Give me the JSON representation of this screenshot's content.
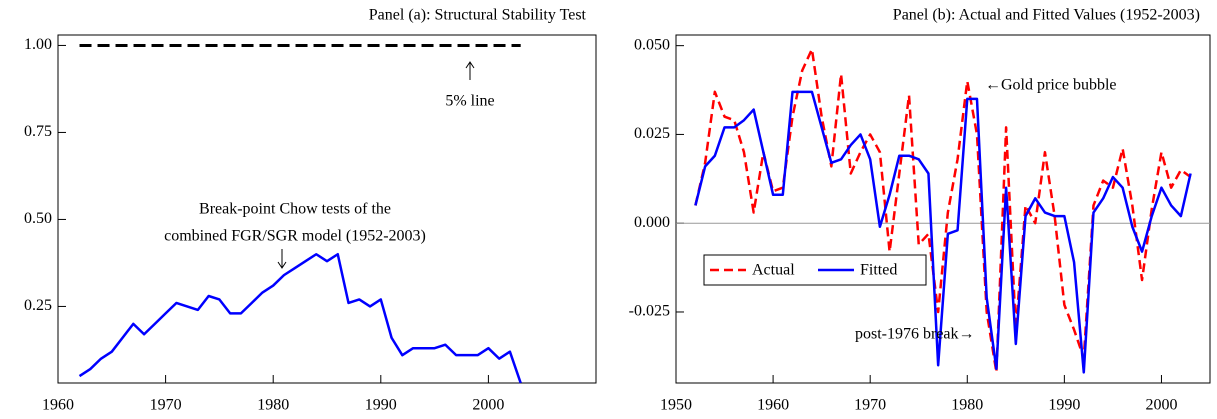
{
  "chart_data": [
    {
      "type": "line",
      "title": "Panel (a): Structural Stability Test",
      "x": [
        1962,
        1963,
        1964,
        1965,
        1966,
        1967,
        1968,
        1969,
        1970,
        1971,
        1972,
        1973,
        1974,
        1975,
        1976,
        1977,
        1978,
        1979,
        1980,
        1981,
        1982,
        1983,
        1984,
        1985,
        1986,
        1987,
        1988,
        1989,
        1990,
        1991,
        1992,
        1993,
        1994,
        1995,
        1996,
        1997,
        1998,
        1999,
        2000,
        2001,
        2002,
        2003
      ],
      "series": [
        {
          "color": "#0000ff",
          "values": [
            0.05,
            0.07,
            0.1,
            0.12,
            0.16,
            0.2,
            0.17,
            0.2,
            0.23,
            0.26,
            0.25,
            0.24,
            0.28,
            0.27,
            0.23,
            0.23,
            0.26,
            0.29,
            0.31,
            0.34,
            0.36,
            0.38,
            0.4,
            0.38,
            0.4,
            0.26,
            0.27,
            0.25,
            0.27,
            0.16,
            0.11,
            0.13,
            0.13,
            0.13,
            0.14,
            0.11,
            0.11,
            0.11,
            0.13,
            0.1,
            0.12,
            0.03
          ]
        }
      ],
      "hline": {
        "value": 1,
        "color": "#000000",
        "style": "dashed"
      },
      "xlim": [
        1960,
        2010
      ],
      "xticks": [
        1960,
        1970,
        1980,
        1990,
        2000
      ],
      "ylim": [
        0.03,
        1.03
      ],
      "yticks": [
        {
          "value": 1,
          "label": "1.00"
        },
        {
          "value": 0.75,
          "label": "0.75"
        },
        {
          "value": 0.5,
          "label": "0.50"
        },
        {
          "value": 0.25,
          "label": "0.25"
        }
      ],
      "annotations": [
        "5% line",
        "Break-point Chow tests of the",
        "combined FGR/SGR model (1952-2003)"
      ]
    },
    {
      "type": "line",
      "title": "Panel (b): Actual and Fitted Values (1952-2003)",
      "x": [
        1952,
        1953,
        1954,
        1955,
        1956,
        1957,
        1958,
        1959,
        1960,
        1961,
        1962,
        1963,
        1964,
        1965,
        1966,
        1967,
        1968,
        1969,
        1970,
        1971,
        1972,
        1973,
        1974,
        1975,
        1976,
        1977,
        1978,
        1979,
        1980,
        1981,
        1982,
        1983,
        1984,
        1985,
        1986,
        1987,
        1988,
        1989,
        1990,
        1991,
        1992,
        1993,
        1994,
        1995,
        1996,
        1997,
        1998,
        1999,
        2000,
        2001,
        2002,
        2003
      ],
      "series": [
        {
          "name": "Actual",
          "color": "#ff0000",
          "style": "dashed",
          "values": [
            0.005,
            0.017,
            0.037,
            0.03,
            0.029,
            0.02,
            0.003,
            0.02,
            0.009,
            0.01,
            0.03,
            0.043,
            0.049,
            0.03,
            0.016,
            0.042,
            0.014,
            0.02,
            0.025,
            0.02,
            -0.008,
            0.014,
            0.036,
            -0.006,
            -0.003,
            -0.025,
            0.003,
            0.018,
            0.04,
            0.025,
            -0.025,
            -0.042,
            0.027,
            -0.03,
            0.005,
            0.0,
            0.02,
            0.002,
            -0.023,
            -0.03,
            -0.038,
            0.005,
            0.012,
            0.01,
            0.021,
            0.005,
            -0.016,
            0.004,
            0.02,
            0.01,
            0.015,
            0.013
          ]
        },
        {
          "name": "Fitted",
          "color": "#0000ff",
          "style": "solid",
          "values": [
            0.005,
            0.016,
            0.019,
            0.027,
            0.027,
            0.029,
            0.032,
            0.02,
            0.008,
            0.008,
            0.037,
            0.037,
            0.037,
            0.027,
            0.017,
            0.018,
            0.022,
            0.025,
            0.018,
            -0.001,
            0.008,
            0.019,
            0.019,
            0.018,
            0.014,
            -0.04,
            -0.003,
            -0.002,
            0.035,
            0.035,
            -0.021,
            -0.041,
            0.01,
            -0.034,
            0.002,
            0.007,
            0.003,
            0.002,
            0.002,
            -0.011,
            -0.042,
            0.003,
            0.007,
            0.013,
            0.01,
            -0.001,
            -0.008,
            0.002,
            0.01,
            0.005,
            0.002,
            0.014
          ]
        }
      ],
      "hline": {
        "value": 0,
        "color": "#999999",
        "style": "solid"
      },
      "legend": "left",
      "xlim": [
        1950,
        2005
      ],
      "xticks": [
        1950,
        1960,
        1970,
        1980,
        1990,
        2000
      ],
      "ylim": [
        -0.045,
        0.053
      ],
      "yticks": [
        {
          "value": 0.05,
          "label": "0.050"
        },
        {
          "value": 0.025,
          "label": "0.025"
        },
        {
          "value": 0,
          "label": "0.000"
        },
        {
          "value": -0.025,
          "label": "-0.025"
        }
      ],
      "annotations": [
        "←Gold price bubble",
        "post-1976 break→"
      ]
    }
  ]
}
